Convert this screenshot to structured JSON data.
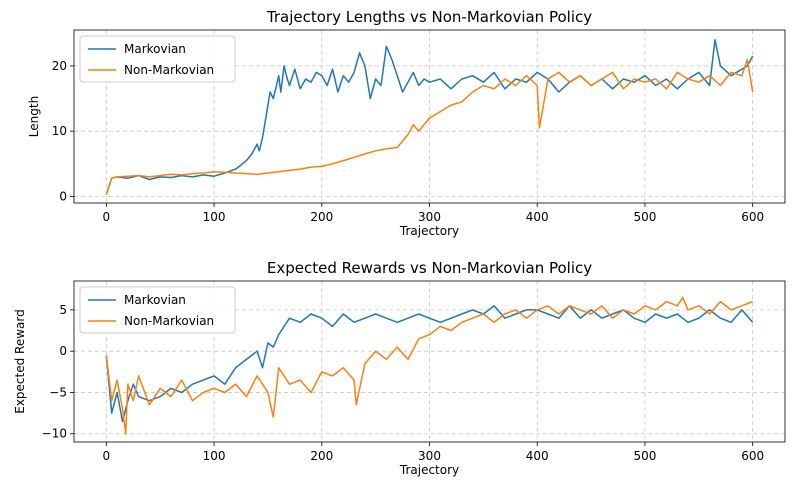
{
  "chart_data": [
    {
      "type": "line",
      "title": "Trajectory Lengths vs  Non-Markovian Policy",
      "xlabel": "Trajectory",
      "ylabel": "Length",
      "xlim": [
        -30,
        630
      ],
      "ylim": [
        -1,
        25.5
      ],
      "xticks": [
        0,
        100,
        200,
        300,
        400,
        500,
        600
      ],
      "yticks": [
        0,
        10,
        20
      ],
      "grid": true,
      "legend": "top-left",
      "series": [
        {
          "name": "Markovian",
          "color": "#1f77b4",
          "x": [
            0,
            5,
            10,
            20,
            30,
            40,
            50,
            60,
            70,
            80,
            90,
            100,
            110,
            120,
            125,
            130,
            135,
            140,
            142,
            145,
            148,
            150,
            152,
            155,
            158,
            160,
            162,
            165,
            168,
            170,
            175,
            180,
            185,
            190,
            195,
            200,
            205,
            210,
            215,
            220,
            225,
            230,
            235,
            240,
            245,
            250,
            255,
            260,
            265,
            270,
            275,
            280,
            285,
            290,
            295,
            300,
            310,
            320,
            330,
            340,
            350,
            360,
            370,
            380,
            390,
            400,
            410,
            420,
            430,
            440,
            450,
            460,
            470,
            480,
            490,
            500,
            510,
            520,
            530,
            540,
            550,
            560,
            565,
            570,
            580,
            590,
            595,
            600
          ],
          "y": [
            0.3,
            2.8,
            3.0,
            2.8,
            3.2,
            2.6,
            3.0,
            2.9,
            3.2,
            3.0,
            3.3,
            3.1,
            3.6,
            4.2,
            4.8,
            5.5,
            6.5,
            8.0,
            7.0,
            9.0,
            12.0,
            14.0,
            16.0,
            15.0,
            17.0,
            18.5,
            16.0,
            20.0,
            18.0,
            17.0,
            19.5,
            16.5,
            18.0,
            17.5,
            19.0,
            18.5,
            17.0,
            19.5,
            16.0,
            18.5,
            17.5,
            19.0,
            22.0,
            20.0,
            15.0,
            18.0,
            17.0,
            23.0,
            21.0,
            18.5,
            16.0,
            17.5,
            19.0,
            17.0,
            18.0,
            17.5,
            18.0,
            16.5,
            18.0,
            18.5,
            17.5,
            19.0,
            16.5,
            18.0,
            17.5,
            19.0,
            18.0,
            16.0,
            17.5,
            18.5,
            17.0,
            18.0,
            16.5,
            18.0,
            17.5,
            18.5,
            17.0,
            18.0,
            16.5,
            18.0,
            19.0,
            17.0,
            24.0,
            20.0,
            18.5,
            19.5,
            20.0,
            21.5
          ]
        },
        {
          "name": "Non-Markovian",
          "color": "#ff7f0e",
          "x": [
            0,
            5,
            10,
            20,
            30,
            40,
            50,
            60,
            70,
            80,
            90,
            100,
            110,
            120,
            130,
            140,
            150,
            160,
            170,
            180,
            190,
            200,
            210,
            220,
            230,
            240,
            250,
            260,
            270,
            280,
            285,
            290,
            300,
            310,
            320,
            330,
            340,
            350,
            360,
            370,
            380,
            390,
            400,
            402,
            410,
            420,
            430,
            440,
            450,
            460,
            470,
            480,
            490,
            500,
            510,
            520,
            530,
            540,
            550,
            560,
            570,
            580,
            590,
            595,
            600
          ],
          "y": [
            0.3,
            2.8,
            3.0,
            3.1,
            3.2,
            3.0,
            3.2,
            3.4,
            3.3,
            3.5,
            3.6,
            3.8,
            3.7,
            3.6,
            3.5,
            3.4,
            3.6,
            3.8,
            4.0,
            4.2,
            4.5,
            4.6,
            5.0,
            5.5,
            6.0,
            6.5,
            7.0,
            7.3,
            7.5,
            9.5,
            11.0,
            10.0,
            12.0,
            13.0,
            14.0,
            14.5,
            16.0,
            17.0,
            16.5,
            18.0,
            17.0,
            18.5,
            17.0,
            10.5,
            18.0,
            19.0,
            17.5,
            18.5,
            17.0,
            18.0,
            19.0,
            16.5,
            18.0,
            17.5,
            18.0,
            16.5,
            19.0,
            18.0,
            17.5,
            18.5,
            17.0,
            19.0,
            18.5,
            21.0,
            16.0
          ]
        }
      ]
    },
    {
      "type": "line",
      "title": "Expected Rewards vs  Non-Markovian Policy",
      "xlabel": "Trajectory",
      "ylabel": "Expected Reward",
      "xlim": [
        -30,
        630
      ],
      "ylim": [
        -11,
        8.5
      ],
      "xticks": [
        0,
        100,
        200,
        300,
        400,
        500,
        600
      ],
      "yticks": [
        -10,
        -5,
        0,
        5
      ],
      "grid": true,
      "legend": "top-left",
      "series": [
        {
          "name": "Markovian",
          "color": "#1f77b4",
          "x": [
            0,
            5,
            10,
            15,
            20,
            25,
            30,
            40,
            50,
            60,
            70,
            80,
            90,
            100,
            110,
            120,
            130,
            140,
            145,
            150,
            155,
            160,
            165,
            170,
            180,
            190,
            200,
            210,
            220,
            230,
            240,
            250,
            260,
            270,
            280,
            290,
            300,
            310,
            320,
            330,
            340,
            350,
            360,
            370,
            380,
            390,
            400,
            410,
            420,
            430,
            440,
            450,
            460,
            470,
            480,
            490,
            500,
            510,
            520,
            530,
            540,
            550,
            560,
            570,
            580,
            590,
            600
          ],
          "y": [
            -0.5,
            -7.5,
            -5.0,
            -8.5,
            -6.0,
            -4.0,
            -5.5,
            -6.0,
            -5.5,
            -4.5,
            -5.0,
            -4.0,
            -3.5,
            -3.0,
            -4.0,
            -2.0,
            -1.0,
            0.0,
            -2.0,
            1.0,
            0.5,
            2.0,
            3.0,
            4.0,
            3.5,
            4.5,
            4.0,
            3.0,
            4.5,
            3.5,
            4.0,
            4.5,
            4.0,
            3.5,
            4.0,
            4.5,
            4.0,
            3.5,
            4.0,
            4.5,
            5.0,
            4.5,
            5.5,
            4.0,
            4.5,
            5.0,
            5.0,
            4.5,
            4.0,
            5.5,
            4.0,
            5.0,
            4.0,
            4.5,
            5.0,
            4.0,
            3.5,
            4.5,
            4.0,
            4.5,
            3.5,
            4.0,
            5.0,
            4.0,
            3.5,
            5.0,
            3.5
          ]
        },
        {
          "name": "Non-Markovian",
          "color": "#ff7f0e",
          "x": [
            0,
            5,
            10,
            15,
            18,
            20,
            25,
            30,
            40,
            50,
            60,
            70,
            80,
            90,
            100,
            110,
            120,
            130,
            140,
            150,
            155,
            160,
            170,
            180,
            190,
            200,
            210,
            220,
            230,
            232,
            240,
            250,
            260,
            270,
            280,
            290,
            300,
            310,
            320,
            330,
            340,
            350,
            360,
            370,
            380,
            390,
            400,
            410,
            420,
            430,
            440,
            450,
            460,
            470,
            480,
            490,
            500,
            510,
            520,
            530,
            535,
            540,
            550,
            560,
            570,
            580,
            590,
            600
          ],
          "y": [
            -0.5,
            -6.0,
            -3.5,
            -7.0,
            -10.0,
            -4.0,
            -6.0,
            -3.0,
            -6.5,
            -4.5,
            -5.5,
            -3.5,
            -6.0,
            -5.0,
            -4.5,
            -5.0,
            -4.0,
            -5.5,
            -3.0,
            -5.0,
            -8.0,
            -2.0,
            -4.0,
            -3.5,
            -5.0,
            -2.5,
            -3.0,
            -2.0,
            -3.5,
            -6.5,
            -1.5,
            0.0,
            -1.0,
            0.5,
            -1.0,
            1.5,
            2.0,
            3.0,
            2.5,
            3.5,
            4.0,
            4.5,
            3.5,
            4.5,
            5.0,
            4.0,
            5.0,
            5.5,
            4.5,
            5.5,
            5.0,
            4.5,
            5.5,
            4.0,
            5.0,
            4.5,
            5.5,
            5.0,
            6.0,
            5.5,
            6.5,
            5.0,
            5.5,
            4.5,
            6.0,
            5.0,
            5.5,
            6.0
          ]
        }
      ]
    }
  ]
}
